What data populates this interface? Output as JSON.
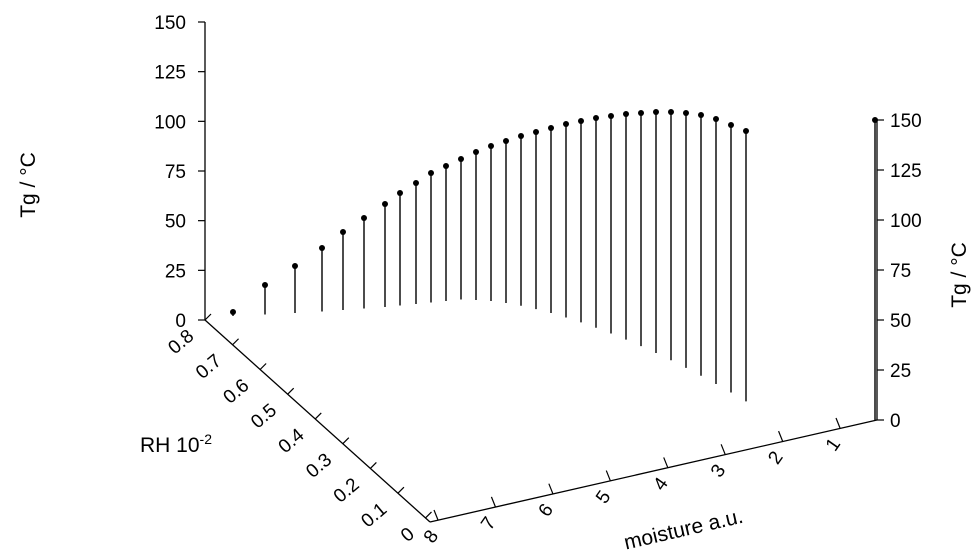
{
  "chart_data": {
    "type": "3d-stem",
    "left_axis": {
      "label": "Tg / °C",
      "ticks": [
        "0",
        "25",
        "50",
        "75",
        "100",
        "125",
        "150"
      ]
    },
    "right_axis": {
      "label": "Tg / °C",
      "ticks": [
        "0",
        "25",
        "50",
        "75",
        "100",
        "125",
        "150"
      ]
    },
    "rh_axis": {
      "label_base": "RH 10",
      "label_exp": "-2",
      "ticks": [
        "0",
        "0.1",
        "0.2",
        "0.3",
        "0.4",
        "0.5",
        "0.6",
        "0.7",
        "0.8"
      ]
    },
    "moisture_axis": {
      "label": "moisture a.u.",
      "ticks": [
        "1",
        "2",
        "3",
        "4",
        "5",
        "6",
        "7",
        "8"
      ]
    },
    "series": [
      {
        "description_points": "stems from floor to Tg value along diagonal path",
        "points": [
          {
            "moisture": 8.0,
            "rh": 0.8,
            "tg": 0
          },
          {
            "moisture": 7.77,
            "rh": 0.77,
            "tg": 13
          },
          {
            "moisture": 7.54,
            "rh": 0.74,
            "tg": 25
          },
          {
            "moisture": 7.31,
            "rh": 0.71,
            "tg": 35
          },
          {
            "moisture": 7.08,
            "rh": 0.68,
            "tg": 44
          },
          {
            "moisture": 6.85,
            "rh": 0.65,
            "tg": 52
          },
          {
            "moisture": 6.62,
            "rh": 0.62,
            "tg": 60
          },
          {
            "moisture": 6.39,
            "rh": 0.59,
            "tg": 66
          },
          {
            "moisture": 6.16,
            "rh": 0.56,
            "tg": 72
          },
          {
            "moisture": 5.93,
            "rh": 0.53,
            "tg": 77
          },
          {
            "moisture": 5.7,
            "rh": 0.5,
            "tg": 82
          },
          {
            "moisture": 5.47,
            "rh": 0.47,
            "tg": 87
          },
          {
            "moisture": 5.24,
            "rh": 0.44,
            "tg": 91
          },
          {
            "moisture": 5.01,
            "rh": 0.41,
            "tg": 95
          },
          {
            "moisture": 4.78,
            "rh": 0.38,
            "tg": 99
          },
          {
            "moisture": 4.55,
            "rh": 0.35,
            "tg": 102
          },
          {
            "moisture": 4.32,
            "rh": 0.32,
            "tg": 106
          },
          {
            "moisture": 4.09,
            "rh": 0.29,
            "tg": 109
          },
          {
            "moisture": 3.86,
            "rh": 0.26,
            "tg": 112
          },
          {
            "moisture": 3.63,
            "rh": 0.23,
            "tg": 115
          },
          {
            "moisture": 3.4,
            "rh": 0.2,
            "tg": 118
          },
          {
            "moisture": 3.17,
            "rh": 0.17,
            "tg": 121
          },
          {
            "moisture": 2.94,
            "rh": 0.14,
            "tg": 124
          },
          {
            "moisture": 2.71,
            "rh": 0.11,
            "tg": 127
          },
          {
            "moisture": 2.48,
            "rh": 0.08,
            "tg": 130
          },
          {
            "moisture": 2.25,
            "rh": 0.05,
            "tg": 133
          },
          {
            "moisture": 2.02,
            "rh": 0.02,
            "tg": 137
          },
          {
            "moisture": 1.79,
            "rh": 0.0,
            "tg": 140
          },
          {
            "moisture": 1.56,
            "rh": 0.0,
            "tg": 143
          },
          {
            "moisture": 1.33,
            "rh": 0.0,
            "tg": 146
          },
          {
            "moisture": 1.1,
            "rh": 0.0,
            "tg": 149
          },
          {
            "moisture": 1.0,
            "rh": 0.0,
            "tg": 150
          }
        ]
      }
    ]
  }
}
